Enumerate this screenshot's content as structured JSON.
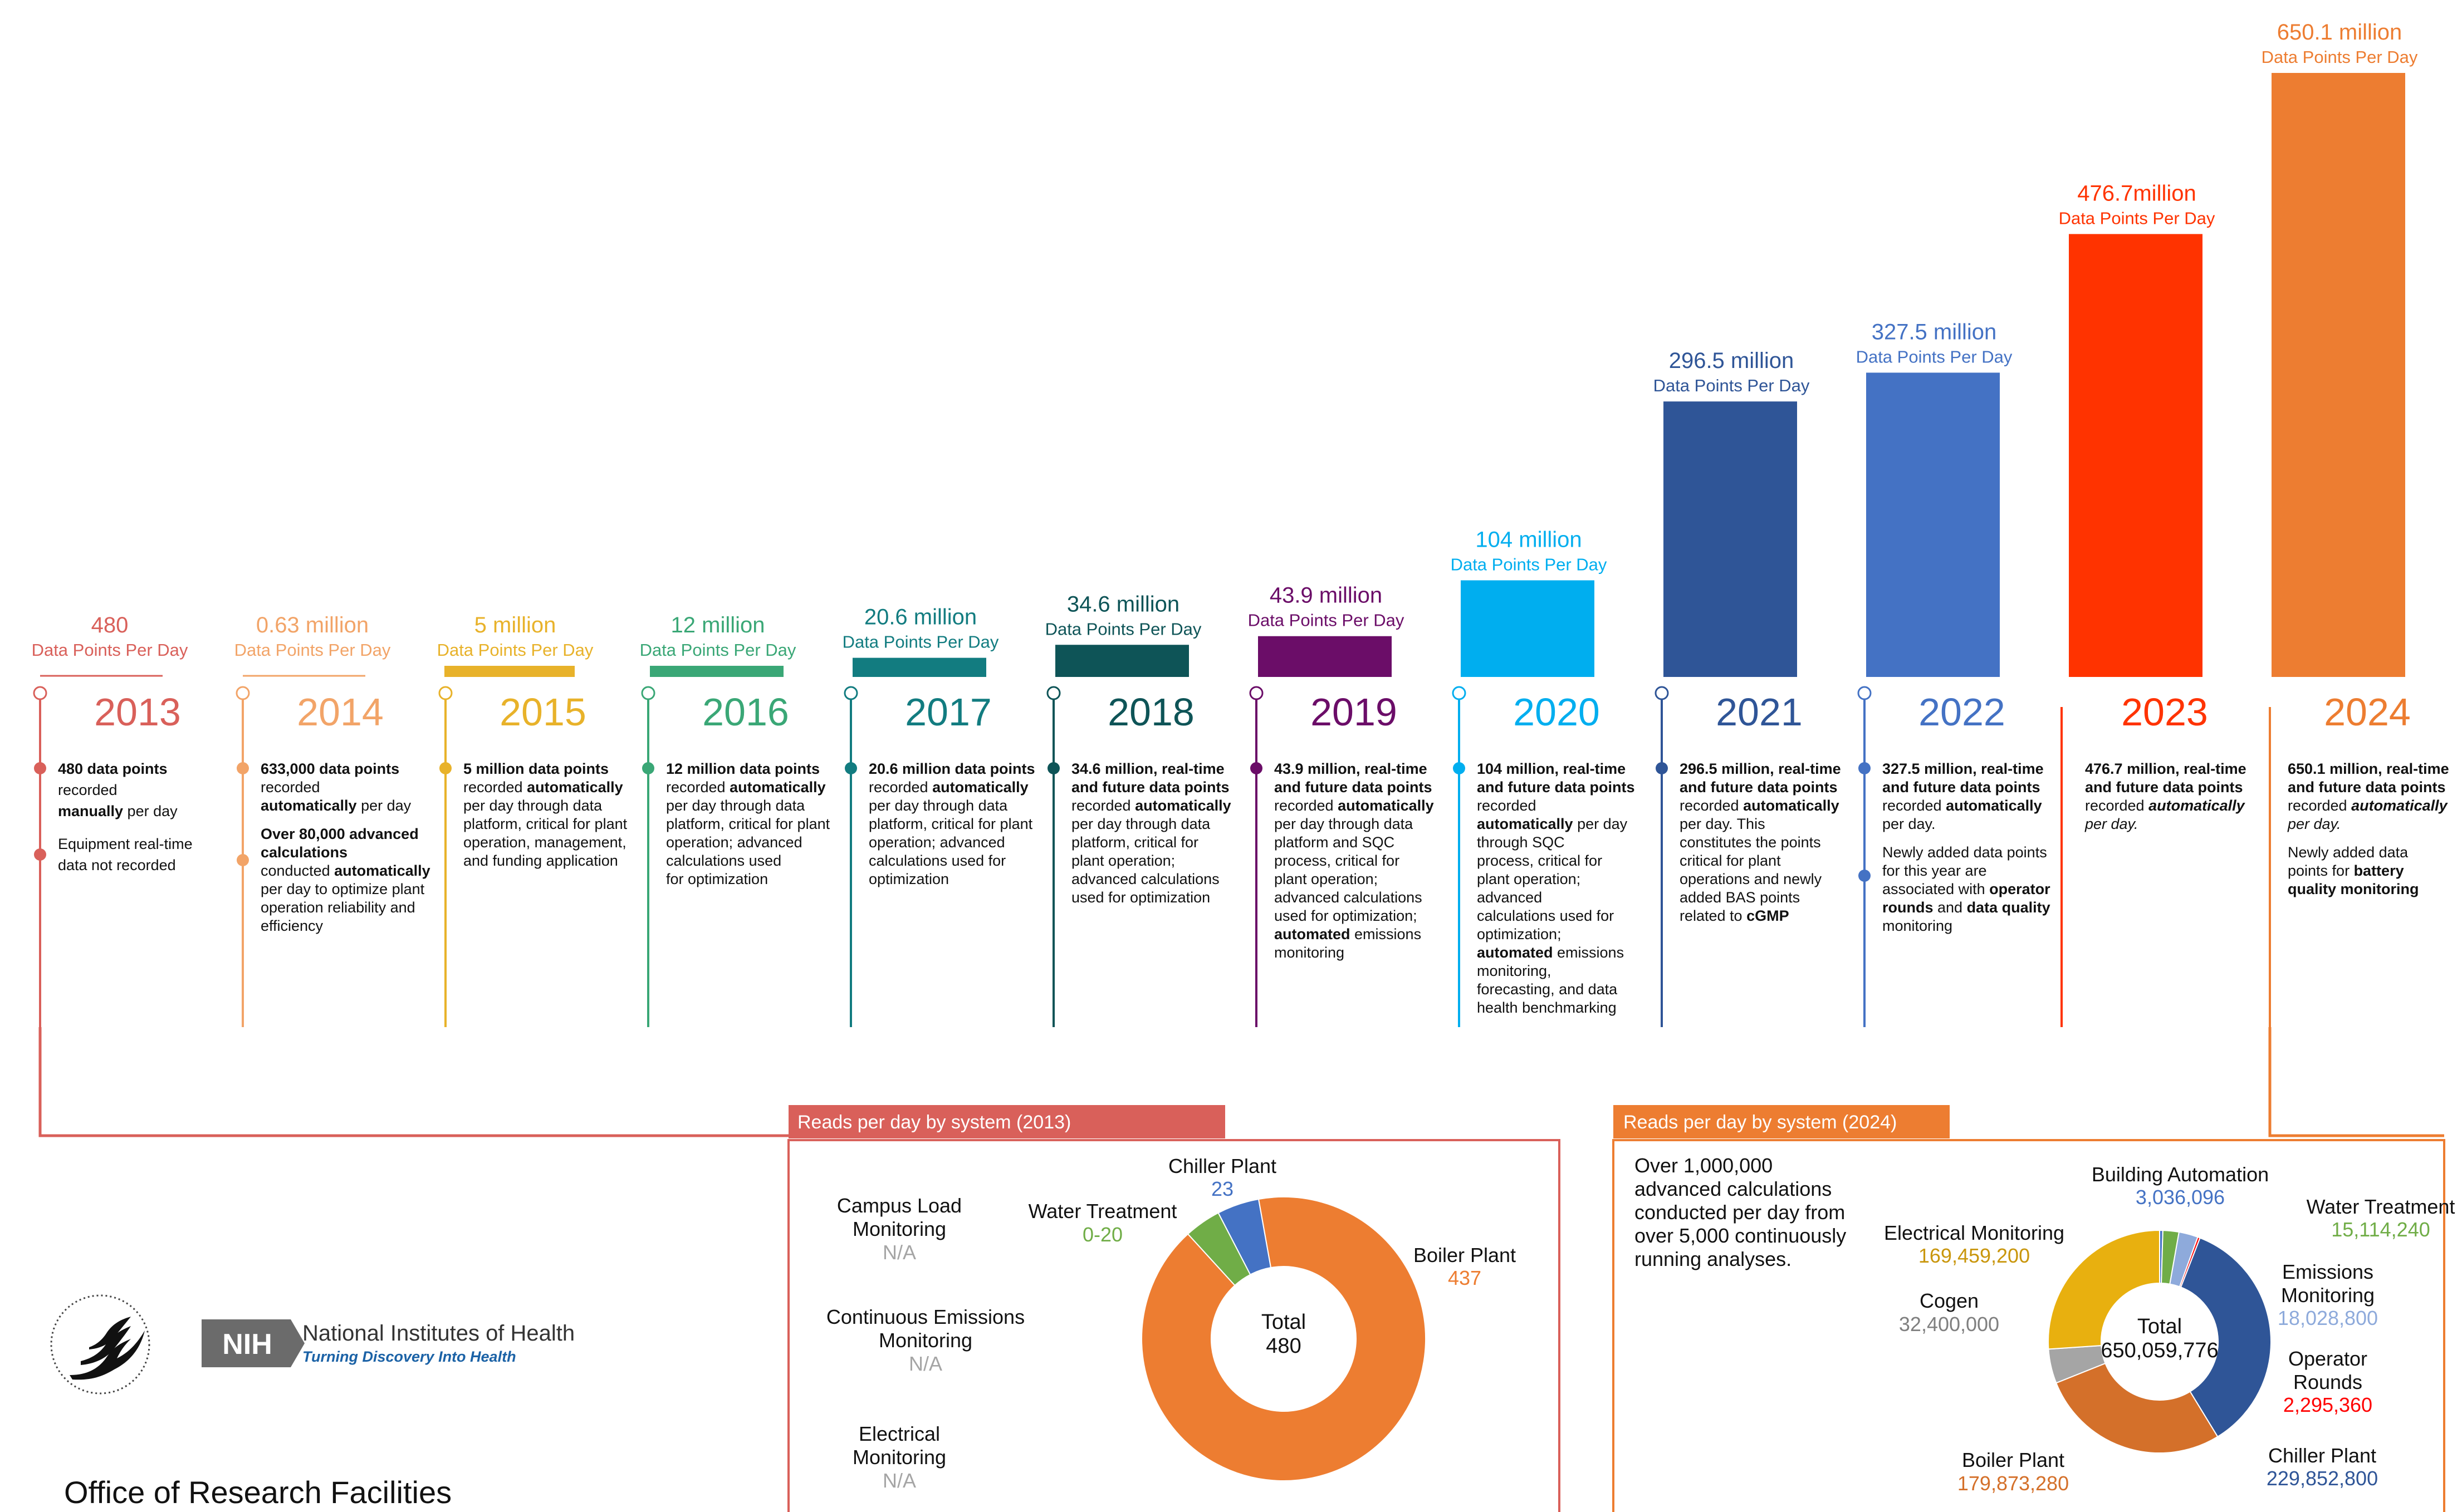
{
  "chart_data": {
    "type": "bar",
    "title": "",
    "xlabel": "",
    "ylabel": "",
    "unit_label": "Data Points Per Day",
    "categories": [
      "2013",
      "2014",
      "2015",
      "2016",
      "2017",
      "2018",
      "2019",
      "2020",
      "2021",
      "2022",
      "2023",
      "2024"
    ],
    "values": [
      480,
      630000,
      5000000,
      12000000,
      20600000,
      34600000,
      43900000,
      104000000,
      296500000,
      327500000,
      476700000,
      650100000
    ],
    "value_labels": [
      "480",
      "0.63 million",
      "5 million",
      "12 million",
      "20.6 million",
      "34.6 million",
      "43.9 million",
      "104 million",
      "296.5 million",
      "327.5 million",
      "476.7million",
      "650.1 million"
    ],
    "ylim": [
      0,
      650100000
    ],
    "grid": false,
    "colors": [
      "#d9605a",
      "#f2a468",
      "#e8b22a",
      "#3aa776",
      "#127c80",
      "#0e5457",
      "#6b0d68",
      "#00aeef",
      "#2f5597",
      "#4472c4",
      "#ff3300",
      "#ed7d31"
    ],
    "milestones": [
      {
        "year": "2013",
        "text": [
          [
            [
              "480 data points",
              "b"
            ]
          ],
          [
            [
              "recorded",
              ""
            ]
          ],
          [
            [
              "manually",
              "b"
            ],
            [
              " per day",
              ""
            ]
          ],
          [
            [
              "",
              ""
            ]
          ],
          [
            [
              "Equipment real-time",
              ""
            ]
          ],
          [
            [
              "data not recorded",
              ""
            ]
          ]
        ]
      },
      {
        "year": "2014",
        "text": [
          [
            [
              "633,000 data points",
              "b"
            ]
          ],
          [
            [
              "recorded",
              ""
            ]
          ],
          [
            [
              "automatically",
              "b"
            ],
            [
              " per day",
              ""
            ]
          ],
          [
            [
              "",
              ""
            ]
          ],
          [
            [
              "Over 80,000 advanced",
              "b"
            ]
          ],
          [
            [
              "calculations",
              "b"
            ]
          ],
          [
            [
              "conducted ",
              ""
            ],
            [
              "automatically",
              "b"
            ]
          ],
          [
            [
              "per day to optimize plant",
              ""
            ]
          ],
          [
            [
              "operation reliability and",
              ""
            ]
          ],
          [
            [
              "efficiency",
              ""
            ]
          ]
        ]
      },
      {
        "year": "2015",
        "text": [
          [
            [
              "5 million data points",
              "b"
            ]
          ],
          [
            [
              "recorded ",
              ""
            ],
            [
              "automatically",
              "b"
            ]
          ],
          [
            [
              "per day through data",
              ""
            ]
          ],
          [
            [
              "platform, critical for plant",
              ""
            ]
          ],
          [
            [
              "operation, management,",
              ""
            ]
          ],
          [
            [
              "and funding application",
              ""
            ]
          ]
        ]
      },
      {
        "year": "2016",
        "text": [
          [
            [
              "12 million data points",
              "b"
            ]
          ],
          [
            [
              "recorded ",
              ""
            ],
            [
              "automatically",
              "b"
            ]
          ],
          [
            [
              "per day through data",
              ""
            ]
          ],
          [
            [
              "platform, critical for plant",
              ""
            ]
          ],
          [
            [
              "operation; advanced",
              ""
            ]
          ],
          [
            [
              "calculations used",
              ""
            ]
          ],
          [
            [
              "for optimization",
              ""
            ]
          ]
        ]
      },
      {
        "year": "2017",
        "text": [
          [
            [
              "20.6 million data points",
              "b"
            ]
          ],
          [
            [
              "recorded ",
              ""
            ],
            [
              "automatically",
              "b"
            ]
          ],
          [
            [
              "per day through data",
              ""
            ]
          ],
          [
            [
              "platform, critical for plant",
              ""
            ]
          ],
          [
            [
              "operation; advanced",
              ""
            ]
          ],
          [
            [
              "calculations used for",
              ""
            ]
          ],
          [
            [
              "optimization",
              ""
            ]
          ]
        ]
      },
      {
        "year": "2018",
        "text": [
          [
            [
              "34.6 million, real-time",
              "b"
            ]
          ],
          [
            [
              "and future data points",
              "b"
            ]
          ],
          [
            [
              "recorded ",
              ""
            ],
            [
              "automatically",
              "b"
            ]
          ],
          [
            [
              "per day through data",
              ""
            ]
          ],
          [
            [
              "platform, critical for",
              ""
            ]
          ],
          [
            [
              "plant operation;",
              ""
            ]
          ],
          [
            [
              "advanced calculations",
              ""
            ]
          ],
          [
            [
              "used for optimization",
              ""
            ]
          ]
        ]
      },
      {
        "year": "2019",
        "text": [
          [
            [
              "43.9 million, real-time",
              "b"
            ]
          ],
          [
            [
              "and future data points",
              "b"
            ]
          ],
          [
            [
              "recorded ",
              ""
            ],
            [
              "automatically",
              "b"
            ]
          ],
          [
            [
              "per day through data",
              ""
            ]
          ],
          [
            [
              "platform and SQC",
              ""
            ]
          ],
          [
            [
              "process, critical for",
              ""
            ]
          ],
          [
            [
              "plant operation;",
              ""
            ]
          ],
          [
            [
              "advanced calculations",
              ""
            ]
          ],
          [
            [
              "used for optimization;",
              ""
            ]
          ],
          [
            [
              "automated",
              "b"
            ],
            [
              " emissions",
              ""
            ]
          ],
          [
            [
              "monitoring",
              ""
            ]
          ]
        ]
      },
      {
        "year": "2020",
        "text": [
          [
            [
              "104 million, real-time",
              "b"
            ]
          ],
          [
            [
              "and future data points",
              "b"
            ]
          ],
          [
            [
              "recorded",
              ""
            ]
          ],
          [
            [
              "automatically",
              "b"
            ],
            [
              " per day",
              ""
            ]
          ],
          [
            [
              "through SQC",
              ""
            ]
          ],
          [
            [
              "process, critical for",
              ""
            ]
          ],
          [
            [
              "plant operation;",
              ""
            ]
          ],
          [
            [
              "advanced",
              ""
            ]
          ],
          [
            [
              "calculations used for",
              ""
            ]
          ],
          [
            [
              "optimization;",
              ""
            ]
          ],
          [
            [
              "automated",
              "b"
            ],
            [
              " emissions",
              ""
            ]
          ],
          [
            [
              "monitoring,",
              ""
            ]
          ],
          [
            [
              "forecasting, and data",
              ""
            ]
          ],
          [
            [
              "health benchmarking",
              ""
            ]
          ]
        ]
      },
      {
        "year": "2021",
        "text": [
          [
            [
              "296.5 million, real-time",
              "b"
            ]
          ],
          [
            [
              "and future data points",
              "b"
            ]
          ],
          [
            [
              "recorded ",
              ""
            ],
            [
              "automatically",
              "b"
            ]
          ],
          [
            [
              "per day. This",
              ""
            ]
          ],
          [
            [
              "constitutes the points",
              ""
            ]
          ],
          [
            [
              "critical for plant",
              ""
            ]
          ],
          [
            [
              "operations and newly",
              ""
            ]
          ],
          [
            [
              "added BAS points",
              ""
            ]
          ],
          [
            [
              "related to ",
              ""
            ],
            [
              "cGMP",
              "b"
            ]
          ]
        ]
      },
      {
        "year": "2022",
        "text": [
          [
            [
              "327.5 million, real-time",
              "b"
            ]
          ],
          [
            [
              "and future data points",
              "b"
            ]
          ],
          [
            [
              "recorded ",
              ""
            ],
            [
              "automatically",
              "b"
            ]
          ],
          [
            [
              "per day.",
              ""
            ]
          ],
          [
            [
              "",
              ""
            ]
          ],
          [
            [
              "Newly added data points",
              ""
            ]
          ],
          [
            [
              "for this year are",
              ""
            ]
          ],
          [
            [
              "associated with ",
              ""
            ],
            [
              "operator",
              "b"
            ]
          ],
          [
            [
              "rounds",
              "b"
            ],
            [
              " and ",
              ""
            ],
            [
              "data quality",
              "b"
            ]
          ],
          [
            [
              "monitoring",
              ""
            ]
          ]
        ]
      },
      {
        "year": "2023",
        "text": [
          [
            [
              "476.7 million, real-time",
              "b"
            ]
          ],
          [
            [
              "and future data points",
              "b"
            ]
          ],
          [
            [
              "recorded ",
              ""
            ],
            [
              "automatically",
              "bi"
            ]
          ],
          [
            [
              "per day.",
              "i"
            ]
          ]
        ]
      },
      {
        "year": "2024",
        "text": [
          [
            [
              "650.1 million, real-time",
              "b"
            ]
          ],
          [
            [
              "and future data points",
              "b"
            ]
          ],
          [
            [
              "recorded ",
              ""
            ],
            [
              "automatically",
              "bi"
            ]
          ],
          [
            [
              "per day.",
              "i"
            ]
          ],
          [
            [
              "",
              ""
            ]
          ],
          [
            [
              "Newly added data",
              ""
            ]
          ],
          [
            [
              "points for ",
              ""
            ],
            [
              "battery",
              "b"
            ]
          ],
          [
            [
              "quality monitoring",
              "b"
            ]
          ]
        ]
      }
    ],
    "donut_2013": {
      "title": "Reads per day by system (2013)",
      "center_label": "Total",
      "center_value": "480",
      "slices": [
        {
          "name": "Chiller Plant",
          "display": "23",
          "value": 23,
          "color": "#4472c4"
        },
        {
          "name": "Water Treatment",
          "display": "0-20",
          "value": 20,
          "color": "#70ad47"
        },
        {
          "name": "Boiler Plant",
          "display": "437",
          "value": 437,
          "color": "#ed7d31"
        },
        {
          "name": "Campus Load Monitoring",
          "display": "N/A",
          "value": 0,
          "color": "#a5a5a5"
        },
        {
          "name": "Continuous Emissions Monitoring",
          "display": "N/A",
          "value": 0,
          "color": "#a5a5a5"
        },
        {
          "name": "Electrical Monitoring",
          "display": "N/A",
          "value": 0,
          "color": "#a5a5a5"
        }
      ]
    },
    "donut_2024": {
      "title": "Reads per day by system (2024)",
      "center_label": "Total",
      "center_value": "650,059,776",
      "note": [
        "Over 1,000,000",
        "advanced calculations",
        "conducted per day from",
        "over 5,000 continuously",
        "running analyses."
      ],
      "slices": [
        {
          "name": "Building Automation",
          "display": "3,036,096",
          "value": 3036096,
          "color": "#4472c4"
        },
        {
          "name": "Water Treatment",
          "display": "15,114,240",
          "value": 15114240,
          "color": "#70ad47"
        },
        {
          "name": "Emissions Monitoring",
          "display": "18,028,800",
          "value": 18028800,
          "color": "#8eaadb"
        },
        {
          "name": "Operator Rounds",
          "display": "2,295,360",
          "value": 2295360,
          "color": "#ff0000"
        },
        {
          "name": "Chiller Plant",
          "display": "229,852,800",
          "value": 229852800,
          "color": "#2f5597"
        },
        {
          "name": "Boiler Plant",
          "display": "179,873,280",
          "value": 179873280,
          "color": "#d4702a"
        },
        {
          "name": "Cogen",
          "display": "32,400,000",
          "value": 32400000,
          "color": "#a5a5a5"
        },
        {
          "name": "Electrical Monitoring",
          "display": "169,459,200",
          "value": 169459200,
          "color": "#e8b00f"
        }
      ]
    }
  },
  "footer": {
    "org_name": "Office of Research Facilities",
    "nih_box": "NIH",
    "nih_name": "National Institutes of Health",
    "nih_tagline": "Turning Discovery Into Health"
  },
  "icons": [
    "hhs-eagle-seal-icon",
    "nih-logo-icon",
    "timeline-marker-icon"
  ]
}
